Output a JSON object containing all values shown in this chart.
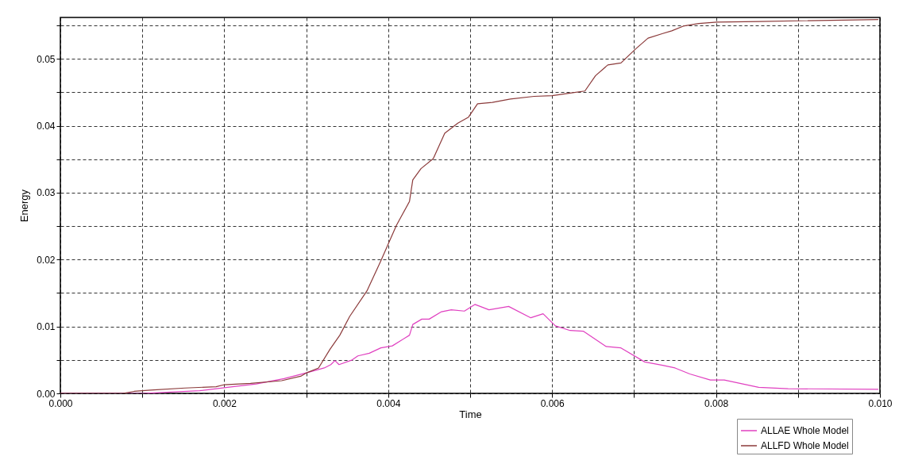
{
  "chart_data": {
    "type": "line",
    "xlabel": "Time",
    "ylabel": "Energy",
    "xlim": [
      0,
      0.01
    ],
    "ylim": [
      0,
      0.0562
    ],
    "xticks": [
      "0.000",
      {
        "value": 0.001,
        "label": null
      },
      {
        "value": 0.002,
        "label": "0.002"
      },
      {
        "value": 0.003,
        "label": null
      },
      {
        "value": 0.004,
        "label": "0.004"
      },
      {
        "value": 0.005,
        "label": null
      },
      {
        "value": 0.006,
        "label": "0.006"
      },
      {
        "value": 0.007,
        "label": null
      },
      {
        "value": 0.008,
        "label": "0.008"
      },
      {
        "value": 0.009,
        "label": null
      },
      {
        "value": 0.01,
        "label": "0.010"
      }
    ],
    "yticks": [
      {
        "value": 0,
        "label": "0.00"
      },
      {
        "value": 0.005,
        "label": null
      },
      {
        "value": 0.01,
        "label": "0.01"
      },
      {
        "value": 0.015,
        "label": null
      },
      {
        "value": 0.02,
        "label": "0.02"
      },
      {
        "value": 0.025,
        "label": null
      },
      {
        "value": 0.03,
        "label": "0.03"
      },
      {
        "value": 0.035,
        "label": null
      },
      {
        "value": 0.04,
        "label": "0.04"
      },
      {
        "value": 0.045,
        "label": null
      },
      {
        "value": 0.05,
        "label": "0.05"
      },
      {
        "value": 0.055,
        "label": null
      }
    ],
    "grid": true,
    "legend": "bottom right",
    "line_style": "solid",
    "marker": "none",
    "series": [
      {
        "name": "ALLAE Whole Model",
        "color": "#e040c0",
        "x": [
          0,
          0.001,
          0.0017,
          0.00204,
          0.00239,
          0.00273,
          0.00301,
          0.00322,
          0.0033,
          0.00335,
          0.0034,
          0.00356,
          0.00363,
          0.00377,
          0.00391,
          0.00405,
          0.00426,
          0.0043,
          0.00441,
          0.0045,
          0.00465,
          0.00477,
          0.00493,
          0.00506,
          0.00523,
          0.00547,
          0.00574,
          0.00589,
          0.00604,
          0.00622,
          0.00638,
          0.00666,
          0.00684,
          0.00713,
          0.00735,
          0.0075,
          0.00768,
          0.00793,
          0.0081,
          0.00852,
          0.00888,
          0.00998
        ],
        "values": [
          0,
          0,
          0.0004,
          0.0009,
          0.0014,
          0.0022,
          0.0031,
          0.0038,
          0.0043,
          0.0049,
          0.0043,
          0.005,
          0.0056,
          0.006,
          0.0068,
          0.0071,
          0.0087,
          0.0103,
          0.0111,
          0.0111,
          0.0122,
          0.0125,
          0.0123,
          0.0133,
          0.0125,
          0.013,
          0.0113,
          0.0119,
          0.0101,
          0.0094,
          0.0093,
          0.007,
          0.0068,
          0.0047,
          0.0042,
          0.0038,
          0.0029,
          0.002,
          0.002,
          0.0009,
          0.0007,
          0.0006
        ]
      },
      {
        "name": "ALLFD Whole Model",
        "color": "#8b3a3a",
        "x": [
          0,
          0.00076,
          0.0009,
          0.0011,
          0.00152,
          0.0019,
          0.002,
          0.00232,
          0.0027,
          0.00294,
          0.00301,
          0.00315,
          0.00329,
          0.00341,
          0.00353,
          0.00374,
          0.00391,
          0.0041,
          0.00426,
          0.0043,
          0.0044,
          0.00455,
          0.00469,
          0.00485,
          0.00498,
          0.00509,
          0.00527,
          0.00549,
          0.00578,
          0.006,
          0.00622,
          0.0064,
          0.00653,
          0.00668,
          0.00684,
          0.00702,
          0.00717,
          0.00735,
          0.00746,
          0.0076,
          0.00779,
          0.00801,
          0.00852,
          0.00998
        ],
        "values": [
          0,
          0,
          0.0003,
          0.0005,
          0.0008,
          0.001,
          0.0013,
          0.0015,
          0.0019,
          0.0026,
          0.0031,
          0.0038,
          0.0066,
          0.0087,
          0.0115,
          0.0153,
          0.0198,
          0.0251,
          0.0287,
          0.0319,
          0.0336,
          0.0351,
          0.0389,
          0.0404,
          0.0413,
          0.0433,
          0.0435,
          0.044,
          0.0444,
          0.0445,
          0.0449,
          0.0452,
          0.0475,
          0.0491,
          0.0494,
          0.0515,
          0.0531,
          0.0538,
          0.0542,
          0.0549,
          0.0553,
          0.0555,
          0.0556,
          0.0559
        ]
      }
    ]
  }
}
